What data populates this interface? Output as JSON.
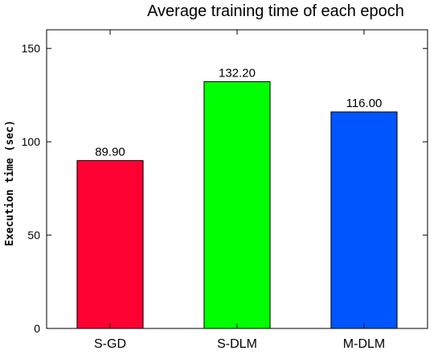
{
  "chart_data": {
    "type": "bar",
    "title": "Average training time of each epoch",
    "xlabel": "",
    "ylabel": "Execution time (sec)",
    "categories": [
      "S-GD",
      "S-DLM",
      "M-DLM"
    ],
    "values": [
      89.9,
      132.2,
      116.0
    ],
    "data_labels": [
      "89.90",
      "132.20",
      "116.00"
    ],
    "ylim": [
      0,
      160
    ],
    "yticks": [
      0,
      50,
      100,
      150
    ],
    "bar_colors": [
      "#ff0033",
      "#00ff00",
      "#0055ff"
    ],
    "edge_color": "#000000",
    "grid": false,
    "legend": "none"
  }
}
